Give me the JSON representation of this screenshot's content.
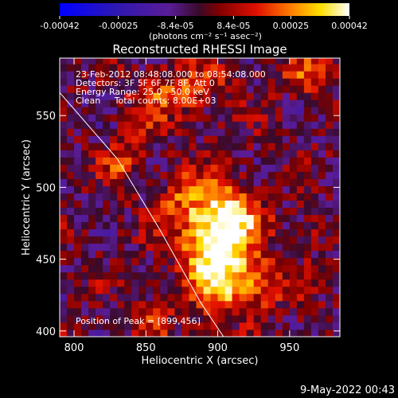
{
  "chart_data": {
    "type": "heatmap",
    "title": "Reconstructed RHESSI Image",
    "xlabel": "Heliocentric X (arcsec)",
    "ylabel": "Heliocentric Y (arcsec)",
    "xlim": [
      790,
      985
    ],
    "ylim": [
      396,
      590
    ],
    "xticks": [
      800,
      850,
      900,
      950
    ],
    "yticks": [
      400,
      450,
      500,
      550
    ],
    "colorbar": {
      "ticks": [
        "-0.00042",
        "-0.00025",
        "-8.4e-05",
        "8.4e-05",
        "0.00025",
        "0.00042"
      ],
      "tick_values": [
        -0.00042,
        -0.00025,
        -8.4e-05,
        8.4e-05,
        0.00025,
        0.00042
      ],
      "range": [
        -0.00042,
        0.00042
      ],
      "unit_line": "(photons cm⁻² s⁻¹ asec⁻²)"
    },
    "annotations": [
      "23-Feb-2012 08:48:08.000 to 08:54:08.000",
      "Detectors: 3F 5F 6F 7F 8F, Att 0",
      "Energy Range: 25.0 - 50.0 keV",
      "Clean     Total counts: 8.00E+03"
    ],
    "peak_label": "Position of Peak = [899,456]",
    "peak": [
      899,
      456
    ],
    "limb_arc": [
      [
        790,
        566
      ],
      [
        830,
        520
      ],
      [
        860,
        470
      ],
      [
        888,
        420
      ],
      [
        904,
        396
      ]
    ],
    "sources": [
      {
        "x": 898,
        "y": 458,
        "amp": 0.00042,
        "sx": 16,
        "sy": 26
      },
      {
        "x": 912,
        "y": 478,
        "amp": 0.00024,
        "sx": 14,
        "sy": 14
      },
      {
        "x": 922,
        "y": 432,
        "amp": 0.00024,
        "sx": 18,
        "sy": 12
      },
      {
        "x": 875,
        "y": 490,
        "amp": 0.00016,
        "sx": 14,
        "sy": 14
      },
      {
        "x": 832,
        "y": 515,
        "amp": 0.00018,
        "sx": 8,
        "sy": 10
      },
      {
        "x": 845,
        "y": 535,
        "amp": 0.00015,
        "sx": 7,
        "sy": 7
      },
      {
        "x": 855,
        "y": 410,
        "amp": 0.00015,
        "sx": 10,
        "sy": 10
      },
      {
        "x": 870,
        "y": 565,
        "amp": 0.0002,
        "sx": 20,
        "sy": 12
      },
      {
        "x": 960,
        "y": 580,
        "amp": 0.00018,
        "sx": 12,
        "sy": 10
      },
      {
        "x": 900,
        "y": 580,
        "amp": 0.0001,
        "sx": 10,
        "sy": 6
      },
      {
        "x": 965,
        "y": 470,
        "amp": 0.0001,
        "sx": 8,
        "sy": 10
      }
    ],
    "colormap": [
      {
        "v": 0.0,
        "c": "#0000ff"
      },
      {
        "v": 0.2,
        "c": "#3018b0"
      },
      {
        "v": 0.38,
        "c": "#5a1c95"
      },
      {
        "v": 0.48,
        "c": "#3a0a2a"
      },
      {
        "v": 0.55,
        "c": "#800000"
      },
      {
        "v": 0.68,
        "c": "#e01000"
      },
      {
        "v": 0.8,
        "c": "#ff8000"
      },
      {
        "v": 0.9,
        "c": "#ffe000"
      },
      {
        "v": 1.0,
        "c": "#ffffff"
      }
    ]
  },
  "footer": {
    "timestamp": "9-May-2022 00:43"
  }
}
